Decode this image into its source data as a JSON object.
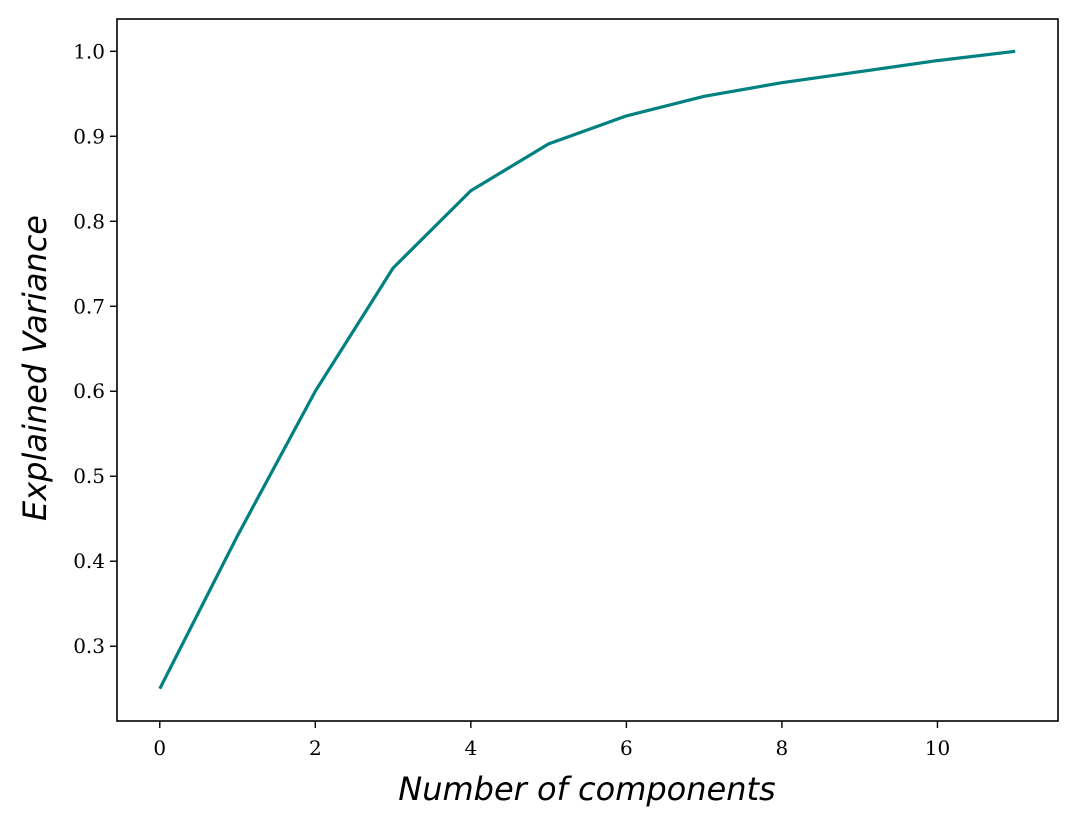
{
  "chart_data": {
    "type": "line",
    "title": "",
    "xlabel": "Number of components",
    "ylabel": "Explained Variance",
    "xlim": [
      -0.55,
      11.55
    ],
    "ylim": [
      0.212,
      1.038
    ],
    "grid": false,
    "xticks": [
      0,
      2,
      4,
      6,
      8,
      10
    ],
    "xtick_labels": [
      "0",
      "2",
      "4",
      "6",
      "8",
      "10"
    ],
    "yticks": [
      0.3,
      0.4,
      0.5,
      0.6,
      0.7,
      0.8,
      0.9,
      1.0
    ],
    "ytick_labels": [
      "0.3",
      "0.4",
      "0.5",
      "0.6",
      "0.7",
      "0.8",
      "0.9",
      "1.0"
    ],
    "series": [
      {
        "color": "#008080",
        "x": [
          0,
          1,
          2,
          3,
          4,
          5,
          6,
          7,
          8,
          9,
          10,
          11
        ],
        "values": [
          0.25,
          0.43,
          0.6,
          0.745,
          0.836,
          0.891,
          0.924,
          0.947,
          0.963,
          0.976,
          0.989,
          1.0
        ]
      }
    ]
  }
}
